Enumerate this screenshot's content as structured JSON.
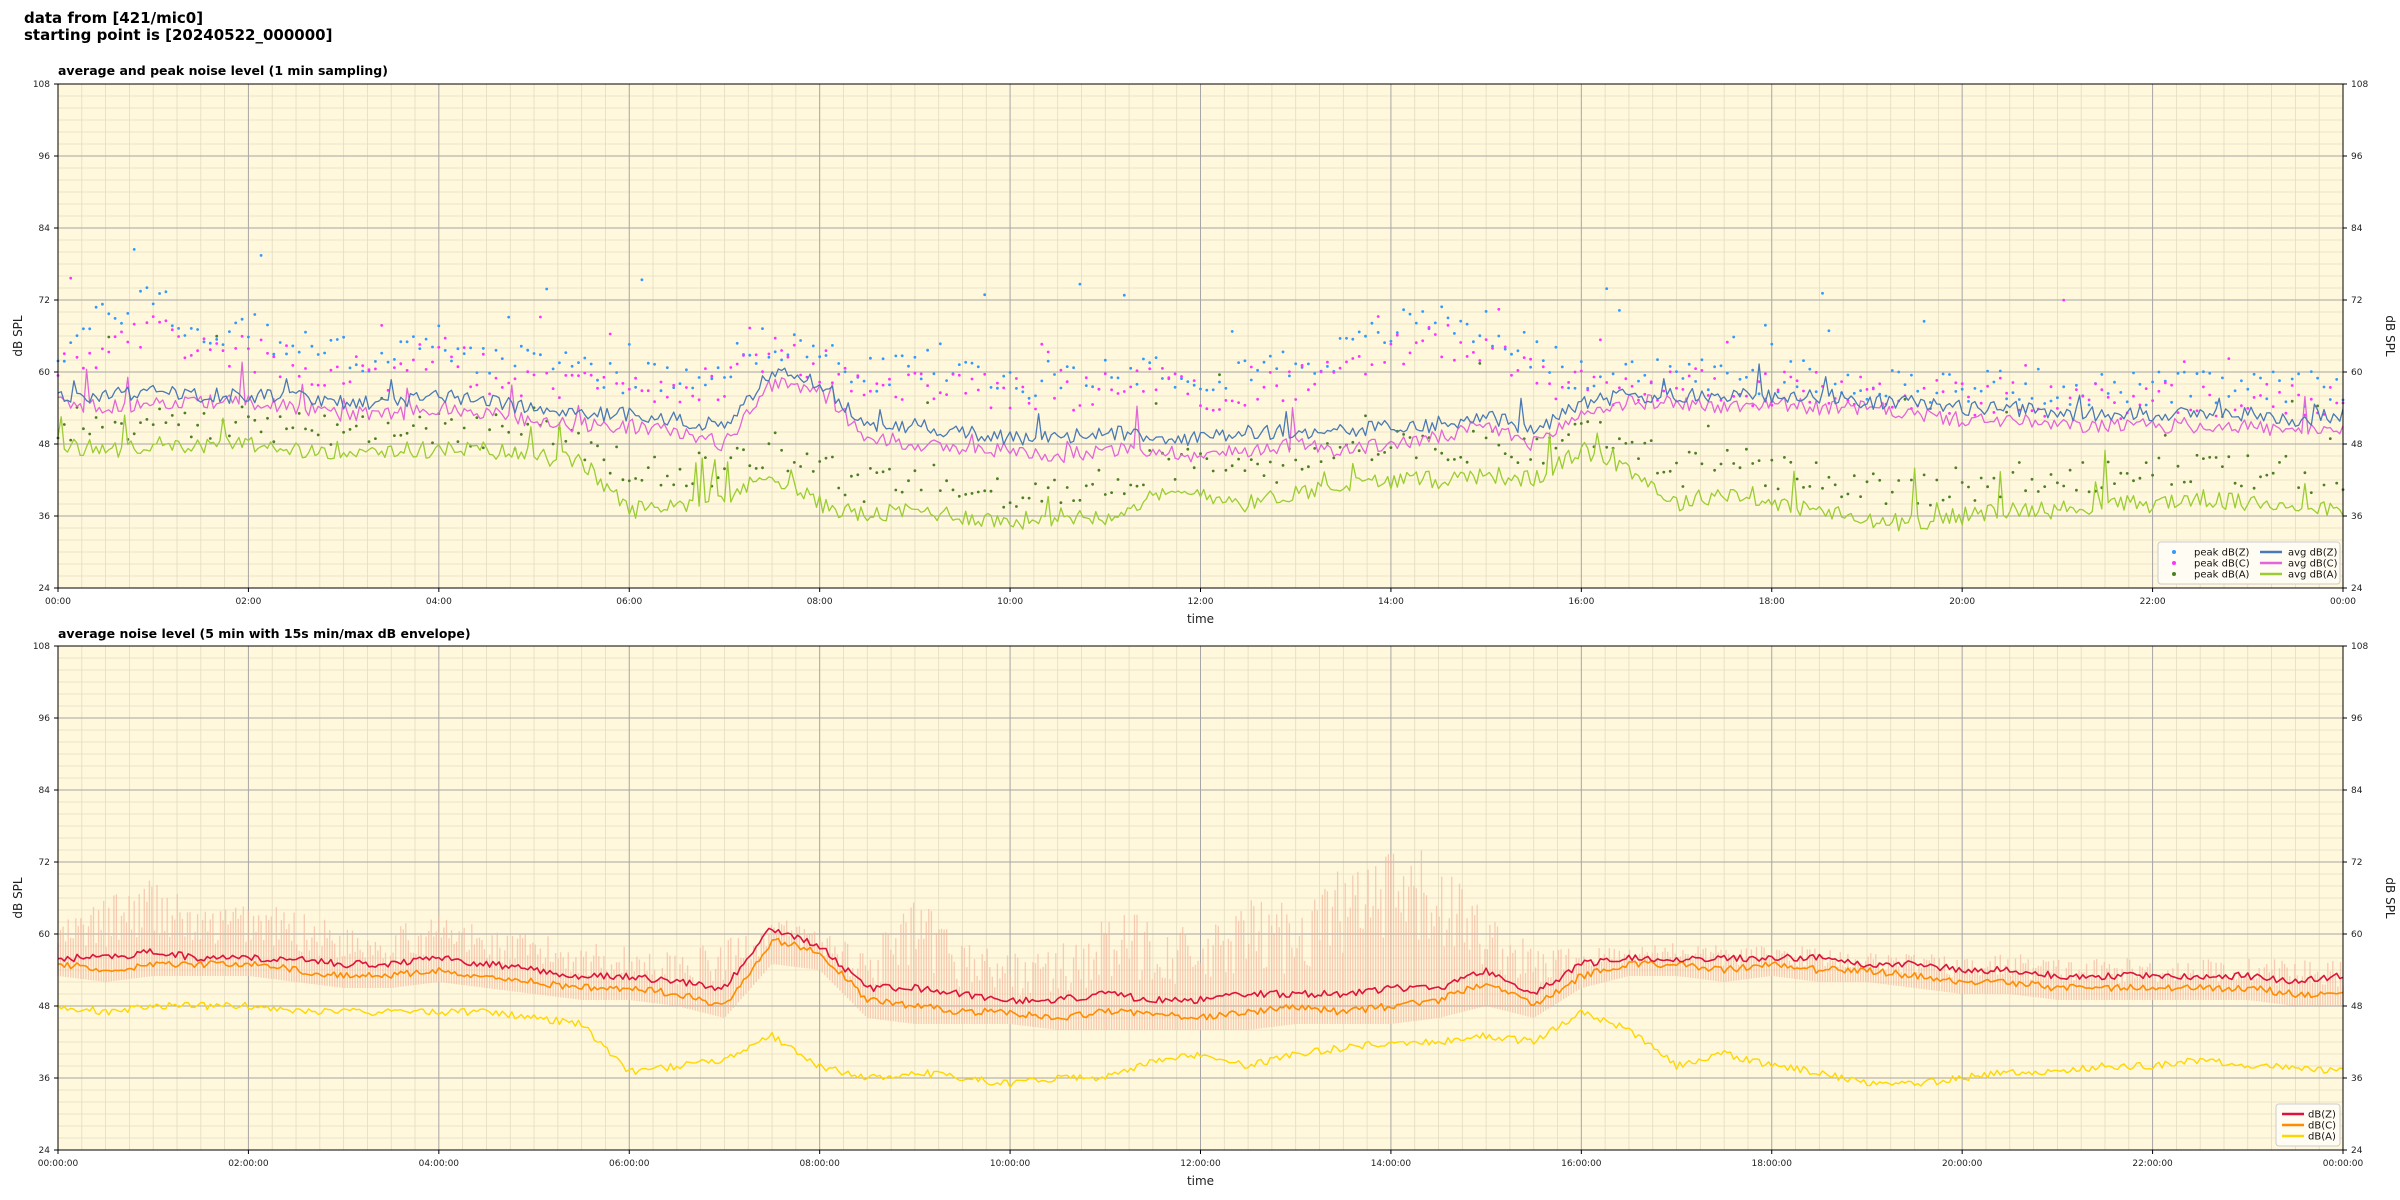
{
  "header": {
    "line1": "data from [421/mic0]",
    "line2": "starting point is [20240522_000000]"
  },
  "colors": {
    "background": "#fff8dc",
    "grid_major": "#a6a6a6",
    "grid_minor": "#e4dcc0",
    "peak_z": "#3399ff",
    "peak_c": "#ff33ff",
    "peak_a": "#4d7f26",
    "avg_z": "#4a7ab5",
    "avg_c": "#e266d8",
    "avg_a": "#9acd32",
    "env": "#f2b8a0",
    "line_z": "#dc143c",
    "line_c": "#ff8c00",
    "line_a": "#ffd700"
  },
  "chart_data": [
    {
      "type": "line",
      "title": "average and peak noise level (1 min sampling)",
      "xlabel": "time",
      "ylabel": "dB SPL",
      "xlim": [
        0,
        24
      ],
      "ylim": [
        24,
        108
      ],
      "yticks": [
        24,
        36,
        48,
        60,
        72,
        84,
        96,
        108
      ],
      "xticklabels": [
        "00:00",
        "02:00",
        "04:00",
        "06:00",
        "08:00",
        "10:00",
        "12:00",
        "14:00",
        "16:00",
        "18:00",
        "20:00",
        "22:00",
        "00:00"
      ],
      "grid": true,
      "legend_position": "lower-right",
      "legend": [
        "peak dB(Z)",
        "peak dB(C)",
        "peak dB(A)",
        "avg dB(Z)",
        "avg dB(C)",
        "avg dB(A)"
      ],
      "x_hours": [
        0,
        0.5,
        1,
        1.5,
        2,
        2.5,
        3,
        3.5,
        4,
        4.5,
        5,
        5.5,
        6,
        6.5,
        7,
        7.5,
        8,
        8.5,
        9,
        9.5,
        10,
        10.5,
        11,
        11.5,
        12,
        12.5,
        13,
        13.5,
        14,
        14.5,
        15,
        15.5,
        16,
        16.5,
        17,
        17.5,
        18,
        18.5,
        19,
        19.5,
        20,
        20.5,
        21,
        21.5,
        22,
        22.5,
        23,
        23.5,
        24
      ],
      "series": [
        {
          "name": "avg dB(Z)",
          "values": [
            56,
            56,
            57,
            56,
            56,
            56,
            55,
            55,
            56,
            55,
            54,
            53,
            53,
            52,
            51,
            60,
            58,
            51,
            51,
            50,
            49,
            49,
            50,
            49,
            49,
            50,
            50,
            50,
            51,
            51,
            53,
            50,
            55,
            56,
            56,
            56,
            56,
            56,
            55,
            55,
            54,
            54,
            53,
            53,
            53,
            53,
            53,
            52,
            53
          ]
        },
        {
          "name": "avg dB(C)",
          "values": [
            55,
            54,
            55,
            55,
            55,
            54,
            53,
            53,
            54,
            53,
            52,
            51,
            51,
            50,
            48,
            58,
            57,
            49,
            48,
            47,
            47,
            46,
            47,
            47,
            46,
            47,
            48,
            47,
            48,
            49,
            51,
            48,
            53,
            55,
            55,
            54,
            55,
            54,
            54,
            53,
            52,
            52,
            51,
            51,
            51,
            51,
            51,
            50,
            50
          ]
        },
        {
          "name": "avg dB(A)",
          "values": [
            48,
            47,
            48,
            48,
            48,
            47,
            47,
            47,
            47,
            47,
            46,
            45,
            37,
            38,
            39,
            43,
            38,
            36,
            37,
            36,
            35,
            36,
            36,
            39,
            40,
            38,
            40,
            41,
            42,
            42,
            43,
            42,
            47,
            44,
            38,
            40,
            38,
            37,
            35,
            35,
            36,
            37,
            37,
            38,
            38,
            39,
            38,
            38,
            37
          ]
        },
        {
          "name": "peak dB(Z)",
          "values": [
            62,
            68,
            72,
            64,
            66,
            63,
            62,
            61,
            64,
            61,
            60,
            60,
            58,
            58,
            60,
            64,
            62,
            58,
            60,
            59,
            57,
            58,
            59,
            60,
            58,
            60,
            60,
            62,
            66,
            68,
            66,
            62,
            58,
            58,
            59,
            58,
            58,
            58,
            57,
            57,
            56,
            57,
            56,
            56,
            56,
            56,
            56,
            56,
            56
          ]
        },
        {
          "name": "peak dB(C)",
          "values": [
            60,
            62,
            66,
            62,
            62,
            60,
            59,
            58,
            62,
            58,
            57,
            56,
            56,
            56,
            57,
            62,
            60,
            56,
            57,
            56,
            55,
            55,
            56,
            57,
            55,
            56,
            57,
            58,
            62,
            64,
            62,
            58,
            56,
            56,
            57,
            56,
            56,
            56,
            55,
            55,
            54,
            55,
            54,
            54,
            54,
            54,
            54,
            54,
            54
          ]
        },
        {
          "name": "peak dB(A)",
          "values": [
            50,
            50,
            51,
            50,
            50,
            50,
            49,
            49,
            50,
            49,
            48,
            47,
            42,
            42,
            43,
            46,
            42,
            40,
            41,
            40,
            39,
            40,
            40,
            43,
            44,
            42,
            44,
            45,
            46,
            46,
            47,
            46,
            49,
            47,
            42,
            44,
            42,
            41,
            39,
            39,
            40,
            41,
            41,
            42,
            42,
            43,
            42,
            42,
            41
          ]
        }
      ]
    },
    {
      "type": "line",
      "title": "average noise level (5 min with 15s min/max dB envelope)",
      "xlabel": "time",
      "ylabel": "dB SPL",
      "xlim": [
        0,
        24
      ],
      "ylim": [
        24,
        108
      ],
      "yticks": [
        24,
        36,
        48,
        60,
        72,
        84,
        96,
        108
      ],
      "xticklabels": [
        "00:00:00",
        "02:00:00",
        "04:00:00",
        "06:00:00",
        "08:00:00",
        "10:00:00",
        "12:00:00",
        "14:00:00",
        "16:00:00",
        "18:00:00",
        "20:00:00",
        "22:00:00",
        "00:00:00"
      ],
      "grid": true,
      "legend_position": "lower-right",
      "legend": [
        "dB(Z)",
        "dB(C)",
        "dB(A)"
      ],
      "x_hours": [
        0,
        0.5,
        1,
        1.5,
        2,
        2.5,
        3,
        3.5,
        4,
        4.5,
        5,
        5.5,
        6,
        6.5,
        7,
        7.5,
        8,
        8.5,
        9,
        9.5,
        10,
        10.5,
        11,
        11.5,
        12,
        12.5,
        13,
        13.5,
        14,
        14.5,
        15,
        15.5,
        16,
        16.5,
        17,
        17.5,
        18,
        18.5,
        19,
        19.5,
        20,
        20.5,
        21,
        21.5,
        22,
        22.5,
        23,
        23.5,
        24
      ],
      "envelope_max": [
        62,
        66,
        70,
        64,
        66,
        64,
        62,
        61,
        64,
        61,
        60,
        59,
        58,
        57,
        59,
        63,
        61,
        58,
        66,
        60,
        57,
        58,
        63,
        64,
        60,
        66,
        66,
        72,
        74,
        74,
        64,
        58,
        58,
        58,
        59,
        58,
        58,
        58,
        57,
        57,
        56,
        57,
        56,
        56,
        56,
        56,
        56,
        56,
        56
      ],
      "envelope_min": [
        53,
        52,
        53,
        53,
        53,
        52,
        51,
        51,
        52,
        51,
        50,
        49,
        49,
        48,
        46,
        55,
        54,
        46,
        45,
        45,
        45,
        44,
        44,
        44,
        44,
        44,
        45,
        45,
        45,
        46,
        48,
        46,
        51,
        53,
        53,
        52,
        53,
        52,
        52,
        51,
        50,
        50,
        49,
        49,
        49,
        49,
        49,
        48,
        48
      ],
      "series": [
        {
          "name": "dB(Z)",
          "values": [
            56,
            56,
            57,
            56,
            56,
            56,
            55,
            55,
            56,
            55,
            54,
            53,
            53,
            52,
            51,
            61,
            58,
            51,
            51,
            50,
            49,
            49,
            50,
            49,
            49,
            50,
            50,
            50,
            51,
            51,
            54,
            50,
            55,
            56,
            56,
            56,
            56,
            56,
            55,
            55,
            54,
            54,
            53,
            53,
            53,
            53,
            53,
            52,
            53
          ]
        },
        {
          "name": "dB(C)",
          "values": [
            55,
            54,
            55,
            55,
            55,
            54,
            53,
            53,
            54,
            53,
            52,
            51,
            51,
            50,
            48,
            59,
            57,
            49,
            48,
            47,
            47,
            46,
            47,
            47,
            46,
            47,
            48,
            47,
            48,
            49,
            52,
            48,
            53,
            55,
            55,
            54,
            55,
            54,
            54,
            53,
            52,
            52,
            51,
            51,
            51,
            51,
            51,
            50,
            50
          ]
        },
        {
          "name": "dB(A)",
          "values": [
            48,
            47,
            48,
            48,
            48,
            47,
            47,
            47,
            47,
            47,
            46,
            45,
            37,
            38,
            39,
            43,
            38,
            36,
            37,
            36,
            35,
            36,
            36,
            39,
            40,
            38,
            40,
            41,
            42,
            42,
            43,
            42,
            47,
            44,
            38,
            40,
            38,
            37,
            35,
            35,
            36,
            37,
            37,
            38,
            38,
            39,
            38,
            38,
            37
          ]
        }
      ]
    }
  ]
}
